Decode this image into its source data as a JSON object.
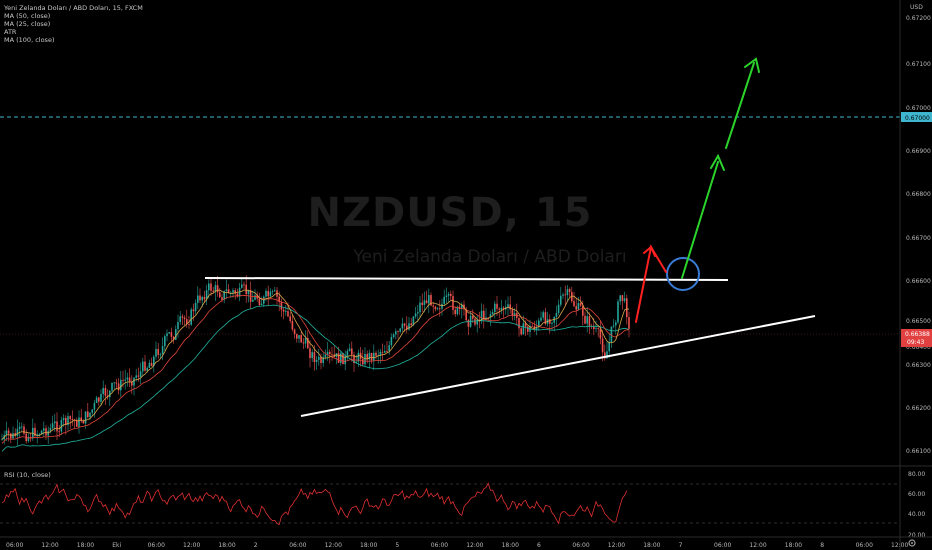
{
  "legend": {
    "title": "Yeni Zelanda Doları / ABD Doları, 15, FXCM",
    "ma50": "MA (50, close)",
    "ma25": "MA (25, close)",
    "atr": "ATR",
    "ma100": "MA (100, close)"
  },
  "watermark": {
    "symbol": "NZDUSD, 15",
    "name": "Yeni Zelanda Doları / ABD Doları"
  },
  "rsi_label": "RSI (10, close)",
  "corner_label": "USD",
  "price_tags": {
    "level": "0.67000",
    "last": "0.66388",
    "countdown": "09:43"
  },
  "price_axis": [
    "0.67200",
    "0.67100",
    "0.67000",
    "0.66900",
    "0.66800",
    "0.66700",
    "0.66600",
    "0.66500",
    "0.66400",
    "0.66300",
    "0.66200",
    "0.66100",
    "0.66000"
  ],
  "rsi_axis": [
    "80.00",
    "60.00",
    "40.00",
    "20.00"
  ],
  "time_axis": [
    "06:00",
    "12:00",
    "18:00",
    "Eki",
    "06:00",
    "12:00",
    "18:00",
    "2",
    "06:00",
    "12:00",
    "18:00",
    "5",
    "06:00",
    "12:00",
    "18:00",
    "6",
    "06:00",
    "12:00",
    "18:00",
    "7",
    "06:00",
    "12:00",
    "18:00",
    "8",
    "06:00",
    "12:00"
  ],
  "colors": {
    "background": "#000000",
    "up_candle": "#26a69a",
    "down_candle": "#ef5350",
    "ma50": "#e0453a",
    "ma25": "#d9a64a",
    "ma100": "#1fb5a0",
    "rsi": "#e03030",
    "trendline": "#ffffff",
    "level_line": "#3fb6d0",
    "red_arrow": "#ff2020",
    "green_arrow": "#2bd42b",
    "circle": "#3a7bd5"
  },
  "icons": [
    "settings-icon"
  ]
}
